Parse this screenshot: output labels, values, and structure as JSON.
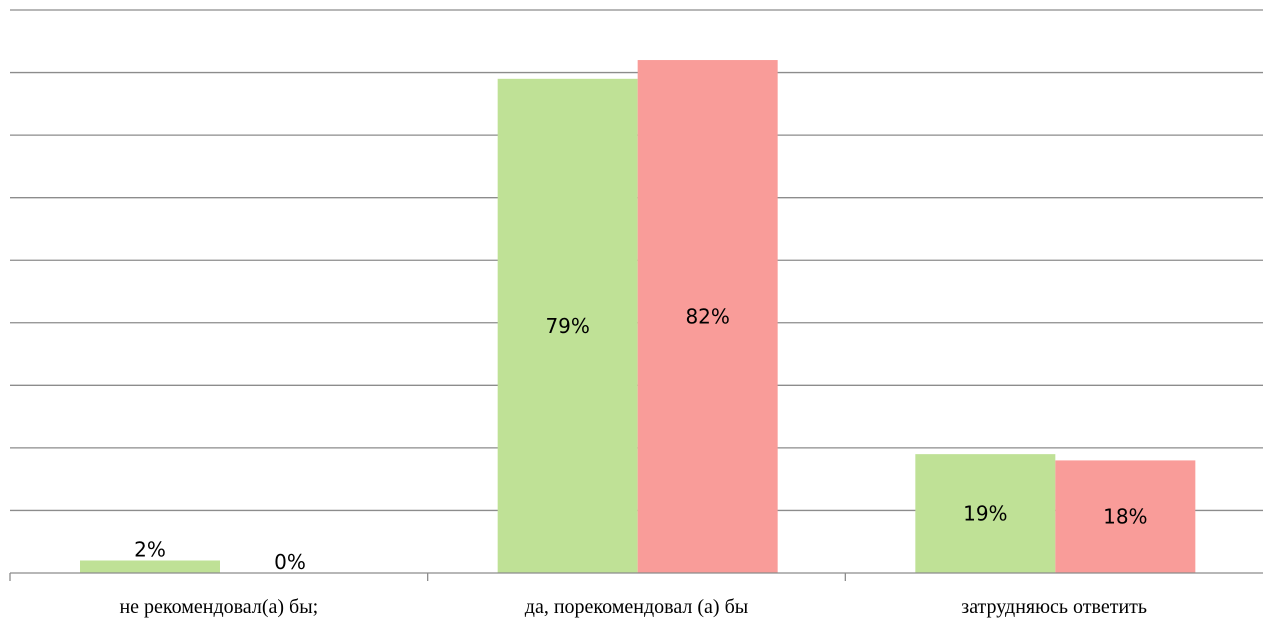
{
  "chart_data": {
    "type": "bar",
    "categories": [
      "не рекомендовал(а) бы;",
      "да, порекомендовал (а) бы",
      "затрудняюсь ответить"
    ],
    "series": [
      {
        "values": [
          2,
          79,
          19
        ],
        "color": "#bfe196"
      },
      {
        "values": [
          0,
          82,
          18
        ],
        "color": "#f99c99"
      }
    ],
    "data_labels": [
      [
        "2%",
        "79%",
        "19%"
      ],
      [
        "0%",
        "82%",
        "18%"
      ]
    ],
    "ylim": [
      0,
      90
    ],
    "grid": true,
    "legend": "none"
  }
}
